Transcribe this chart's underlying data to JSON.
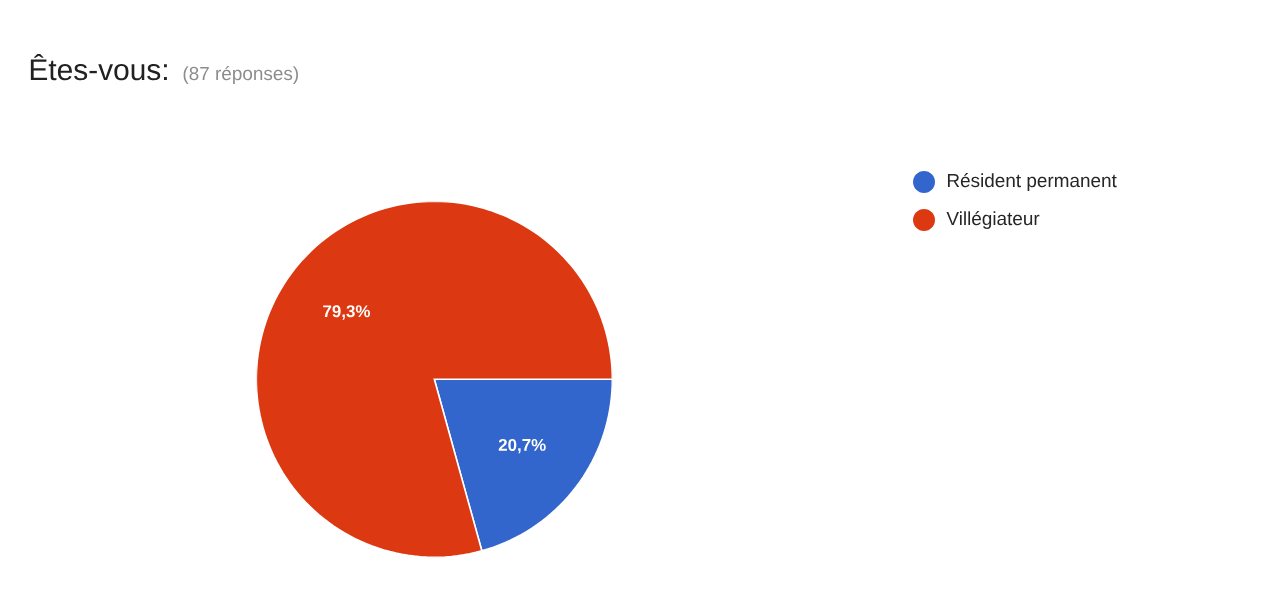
{
  "chart_data": {
    "type": "pie",
    "title": "Êtes-vous:",
    "subtitle": "(87 réponses)",
    "categories": [
      "Résident permanent",
      "Villégiateur"
    ],
    "values": [
      20.7,
      79.3
    ],
    "colors": [
      "#3366cc",
      "#dc3912"
    ],
    "value_labels": [
      "20,7%",
      "79,3%"
    ],
    "legend": "top right"
  }
}
